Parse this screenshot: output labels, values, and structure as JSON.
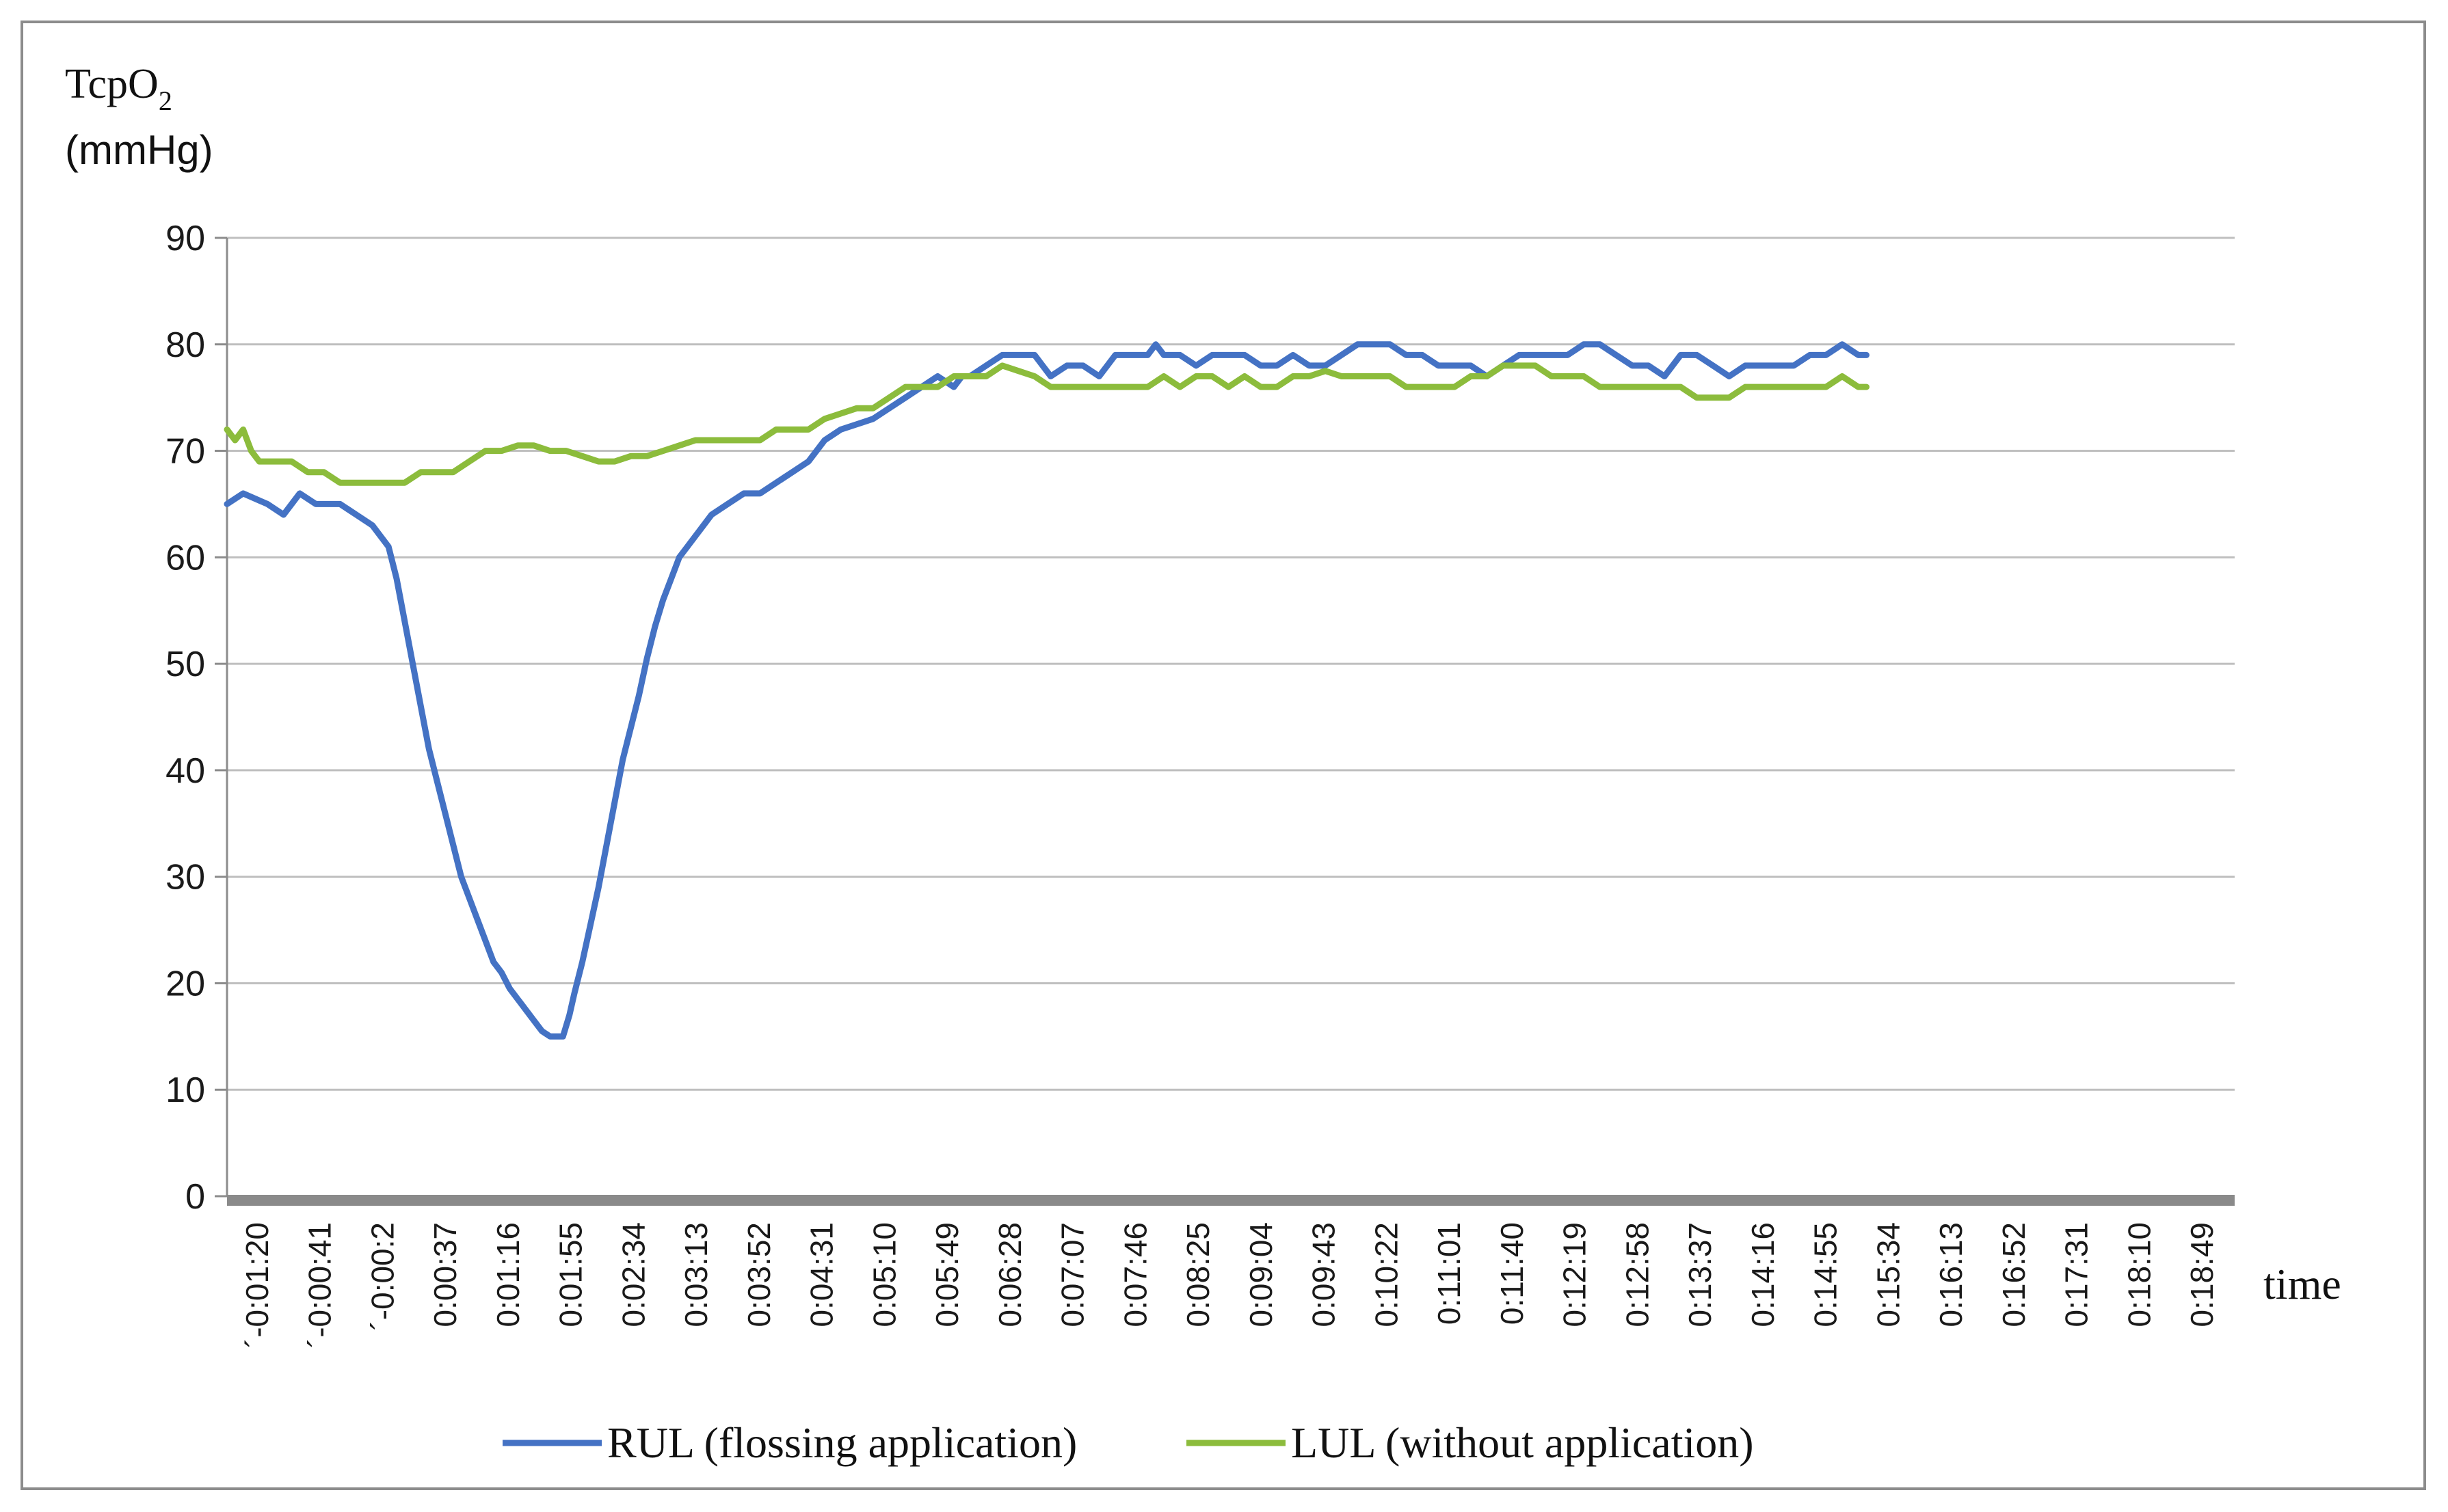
{
  "chart_data": {
    "type": "line",
    "ylabel_main": "TcpO",
    "ylabel_sub": "2",
    "ylabel_unit": "(mmHg)",
    "xlabel": "time",
    "ylim": [
      0,
      90
    ],
    "yticks": [
      0,
      10,
      20,
      30,
      40,
      50,
      60,
      70,
      80,
      90
    ],
    "grid": true,
    "legend_position": "bottom",
    "x_range_seconds": [
      -80,
      1163
    ],
    "x_tick_labels": [
      "´-0:01:20",
      "´-0:00:41",
      "´-0:00:2",
      "0:00:37",
      "0:01:16",
      "0:01:55",
      "0:02:34",
      "0:03:13",
      "0:03:52",
      "0:04:31",
      "0:05:10",
      "0:05:49",
      "0:06:28",
      "0:07:07",
      "0:07:46",
      "0:08:25",
      "0:09:04",
      "0:09:43",
      "0:10:22",
      "0:11:01",
      "0:11:40",
      "0:12:19",
      "0:12:58",
      "0:13:37",
      "0:14:16",
      "0:14:55",
      "0:15:34",
      "0:16:13",
      "0:16:52",
      "0:17:31",
      "0:18:10",
      "0:18:49"
    ],
    "series": [
      {
        "name": "RUL (flossing application)",
        "color": "#4472c4",
        "points": [
          [
            -80,
            65
          ],
          [
            -70,
            66
          ],
          [
            -55,
            65
          ],
          [
            -45,
            64
          ],
          [
            -35,
            66
          ],
          [
            -25,
            65
          ],
          [
            -10,
            65
          ],
          [
            0,
            64
          ],
          [
            10,
            63
          ],
          [
            20,
            61
          ],
          [
            25,
            58
          ],
          [
            30,
            54
          ],
          [
            35,
            50
          ],
          [
            40,
            46
          ],
          [
            45,
            42
          ],
          [
            50,
            39
          ],
          [
            55,
            36
          ],
          [
            60,
            33
          ],
          [
            65,
            30
          ],
          [
            70,
            28
          ],
          [
            75,
            26
          ],
          [
            80,
            24
          ],
          [
            85,
            22
          ],
          [
            90,
            21
          ],
          [
            95,
            19.5
          ],
          [
            100,
            18.5
          ],
          [
            105,
            17.5
          ],
          [
            110,
            16.5
          ],
          [
            115,
            15.5
          ],
          [
            120,
            15
          ],
          [
            125,
            15
          ],
          [
            128,
            15
          ],
          [
            132,
            17
          ],
          [
            135,
            19
          ],
          [
            140,
            22
          ],
          [
            145,
            25.5
          ],
          [
            150,
            29
          ],
          [
            155,
            33
          ],
          [
            160,
            37
          ],
          [
            165,
            41
          ],
          [
            170,
            44
          ],
          [
            175,
            47
          ],
          [
            180,
            50.5
          ],
          [
            185,
            53.5
          ],
          [
            190,
            56
          ],
          [
            195,
            58
          ],
          [
            200,
            60
          ],
          [
            205,
            61
          ],
          [
            210,
            62
          ],
          [
            215,
            63
          ],
          [
            220,
            64
          ],
          [
            230,
            65
          ],
          [
            240,
            66
          ],
          [
            250,
            66
          ],
          [
            260,
            67
          ],
          [
            270,
            68
          ],
          [
            280,
            69
          ],
          [
            290,
            71
          ],
          [
            300,
            72
          ],
          [
            310,
            72.5
          ],
          [
            320,
            73
          ],
          [
            330,
            74
          ],
          [
            340,
            75
          ],
          [
            350,
            76
          ],
          [
            360,
            77
          ],
          [
            370,
            76
          ],
          [
            375,
            77
          ],
          [
            380,
            77
          ],
          [
            390,
            78
          ],
          [
            400,
            79
          ],
          [
            410,
            79
          ],
          [
            420,
            79
          ],
          [
            430,
            77
          ],
          [
            440,
            78
          ],
          [
            450,
            78
          ],
          [
            460,
            77
          ],
          [
            470,
            79
          ],
          [
            480,
            79
          ],
          [
            490,
            79
          ],
          [
            495,
            80
          ],
          [
            500,
            79
          ],
          [
            510,
            79
          ],
          [
            520,
            78
          ],
          [
            530,
            79
          ],
          [
            540,
            79
          ],
          [
            550,
            79
          ],
          [
            560,
            78
          ],
          [
            570,
            78
          ],
          [
            580,
            79
          ],
          [
            590,
            78
          ],
          [
            600,
            78
          ],
          [
            610,
            79
          ],
          [
            620,
            80
          ],
          [
            630,
            80
          ],
          [
            640,
            80
          ],
          [
            650,
            79
          ],
          [
            660,
            79
          ],
          [
            670,
            78
          ],
          [
            680,
            78
          ],
          [
            690,
            78
          ],
          [
            700,
            77
          ],
          [
            710,
            78
          ],
          [
            720,
            79
          ],
          [
            730,
            79
          ],
          [
            740,
            79
          ],
          [
            750,
            79
          ],
          [
            760,
            80
          ],
          [
            770,
            80
          ],
          [
            780,
            79
          ],
          [
            790,
            78
          ],
          [
            800,
            78
          ],
          [
            810,
            77
          ],
          [
            820,
            79
          ],
          [
            830,
            79
          ],
          [
            840,
            78
          ],
          [
            850,
            77
          ],
          [
            860,
            78
          ],
          [
            870,
            78
          ],
          [
            880,
            78
          ],
          [
            890,
            78
          ],
          [
            900,
            79
          ],
          [
            910,
            79
          ],
          [
            920,
            80
          ],
          [
            930,
            79
          ],
          [
            935,
            79
          ]
        ]
      },
      {
        "name": "LUL (without application)",
        "color": "#8cbc3c",
        "points": [
          [
            -80,
            72
          ],
          [
            -75,
            71
          ],
          [
            -70,
            72
          ],
          [
            -65,
            70
          ],
          [
            -60,
            69
          ],
          [
            -50,
            69
          ],
          [
            -40,
            69
          ],
          [
            -30,
            68
          ],
          [
            -20,
            68
          ],
          [
            -10,
            67
          ],
          [
            0,
            67
          ],
          [
            10,
            67
          ],
          [
            20,
            67
          ],
          [
            30,
            67
          ],
          [
            40,
            68
          ],
          [
            50,
            68
          ],
          [
            60,
            68
          ],
          [
            70,
            69
          ],
          [
            80,
            70
          ],
          [
            90,
            70
          ],
          [
            100,
            70.5
          ],
          [
            110,
            70.5
          ],
          [
            120,
            70
          ],
          [
            130,
            70
          ],
          [
            140,
            69.5
          ],
          [
            150,
            69
          ],
          [
            160,
            69
          ],
          [
            170,
            69.5
          ],
          [
            180,
            69.5
          ],
          [
            190,
            70
          ],
          [
            200,
            70.5
          ],
          [
            210,
            71
          ],
          [
            220,
            71
          ],
          [
            230,
            71
          ],
          [
            240,
            71
          ],
          [
            250,
            71
          ],
          [
            260,
            72
          ],
          [
            270,
            72
          ],
          [
            280,
            72
          ],
          [
            290,
            73
          ],
          [
            300,
            73.5
          ],
          [
            310,
            74
          ],
          [
            320,
            74
          ],
          [
            330,
            75
          ],
          [
            340,
            76
          ],
          [
            350,
            76
          ],
          [
            360,
            76
          ],
          [
            370,
            77
          ],
          [
            380,
            77
          ],
          [
            390,
            77
          ],
          [
            400,
            78
          ],
          [
            410,
            77.5
          ],
          [
            420,
            77
          ],
          [
            430,
            76
          ],
          [
            440,
            76
          ],
          [
            450,
            76
          ],
          [
            460,
            76
          ],
          [
            470,
            76
          ],
          [
            480,
            76
          ],
          [
            490,
            76
          ],
          [
            500,
            77
          ],
          [
            510,
            76
          ],
          [
            520,
            77
          ],
          [
            530,
            77
          ],
          [
            540,
            76
          ],
          [
            550,
            77
          ],
          [
            560,
            76
          ],
          [
            570,
            76
          ],
          [
            580,
            77
          ],
          [
            590,
            77
          ],
          [
            600,
            77.5
          ],
          [
            610,
            77
          ],
          [
            620,
            77
          ],
          [
            630,
            77
          ],
          [
            640,
            77
          ],
          [
            650,
            76
          ],
          [
            660,
            76
          ],
          [
            670,
            76
          ],
          [
            680,
            76
          ],
          [
            690,
            77
          ],
          [
            700,
            77
          ],
          [
            710,
            78
          ],
          [
            720,
            78
          ],
          [
            730,
            78
          ],
          [
            740,
            77
          ],
          [
            750,
            77
          ],
          [
            760,
            77
          ],
          [
            770,
            76
          ],
          [
            780,
            76
          ],
          [
            790,
            76
          ],
          [
            800,
            76
          ],
          [
            810,
            76
          ],
          [
            820,
            76
          ],
          [
            830,
            75
          ],
          [
            840,
            75
          ],
          [
            850,
            75
          ],
          [
            860,
            76
          ],
          [
            870,
            76
          ],
          [
            880,
            76
          ],
          [
            890,
            76
          ],
          [
            900,
            76
          ],
          [
            910,
            76
          ],
          [
            920,
            77
          ],
          [
            930,
            76
          ],
          [
            935,
            76
          ]
        ]
      }
    ]
  }
}
